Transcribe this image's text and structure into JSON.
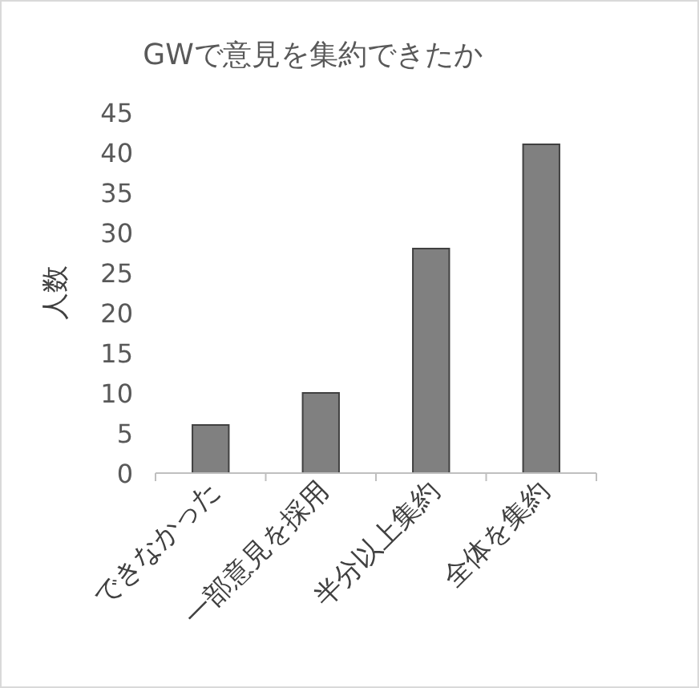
{
  "chart_data": {
    "type": "bar",
    "title": "GWで意見を集約できたか",
    "ylabel": "人数",
    "categories": [
      "できなかった",
      "一部意見を採用",
      "半分以上集約",
      "全体を集約"
    ],
    "values": [
      6,
      10,
      28,
      41
    ],
    "color": "#808080",
    "ylim": [
      0,
      45
    ],
    "yticks": [
      0,
      5,
      10,
      15,
      20,
      25,
      30,
      35,
      40,
      45
    ],
    "grid": false
  }
}
